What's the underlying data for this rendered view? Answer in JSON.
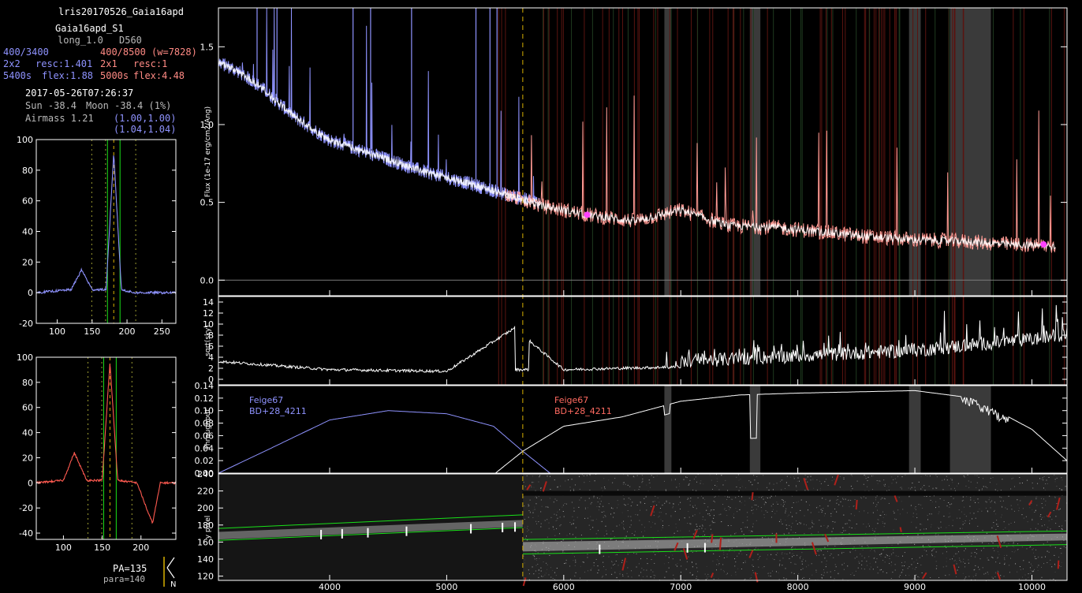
{
  "header": {
    "run_name": "lris20170526_Gaia16apd",
    "object": "Gaia16apd_S1",
    "slit": "long_1.0",
    "dichroic": "D560",
    "blue_grating": "400/3400",
    "red_grating": "400/8500 (w=7828)",
    "blue_binning": "2x2",
    "blue_resc": "resc:1.401",
    "red_binning": "2x1",
    "red_resc": "resc:1",
    "blue_exptime": "5400s",
    "blue_flex": "flex:1.88",
    "red_exptime": "5000s",
    "red_flex": "flex:4.48",
    "datetime": "2017-05-26T07:26:37",
    "sun": "Sun -38.4",
    "moon": "Moon -38.4 (1%)",
    "airmass": "Airmass 1.21",
    "airmass_blue": "(1.00,1.00)",
    "airmass_red": "(1.04,1.04)",
    "pa": "PA=135",
    "para": "para=140",
    "compass_n": "N"
  },
  "colors": {
    "blue": "#8f93ff",
    "red": "#ff5a50",
    "pink": "#ff9a94",
    "green": "#19e019",
    "gold": "#d8b000",
    "mask": "#3a3a3a"
  },
  "chart_data": [
    {
      "id": "flux",
      "type": "line",
      "ylabel": "Flux (1e-17 erg/cm2/Ang)",
      "xlim": [
        3050,
        10300
      ],
      "ylim": [
        -0.1,
        1.75
      ],
      "yticks": [
        "0.0",
        "0.5",
        "1.0",
        "1.5"
      ],
      "xticks": [
        "4000",
        "5000",
        "6000",
        "7000",
        "8000",
        "9000",
        "10000"
      ],
      "dichroic_x": 5650,
      "masked_regions": [
        [
          6860,
          6920
        ],
        [
          7590,
          7680
        ],
        [
          8950,
          9050
        ],
        [
          9300,
          9650
        ]
      ],
      "series": [
        {
          "color": "blue",
          "x": [
            3050,
            3200,
            3400,
            3700,
            4000,
            4400,
            4800,
            5200,
            5600,
            5800
          ],
          "y": [
            1.4,
            1.35,
            1.25,
            1.05,
            0.9,
            0.8,
            0.7,
            0.62,
            0.53,
            0.5
          ]
        },
        {
          "color": "red",
          "x": [
            5500,
            5800,
            6200,
            6600,
            7000,
            7400,
            7800,
            8200,
            8600,
            9000,
            9400,
            9800,
            10200
          ],
          "y": [
            0.55,
            0.48,
            0.42,
            0.38,
            0.45,
            0.35,
            0.34,
            0.31,
            0.28,
            0.26,
            0.25,
            0.23,
            0.22
          ]
        }
      ]
    },
    {
      "id": "sky",
      "type": "line",
      "ylabel": "sqrt(sky)",
      "xlim": [
        3050,
        10300
      ],
      "ylim": [
        -1,
        15
      ],
      "yticks": [
        "0",
        "2",
        "4",
        "6",
        "8",
        "10",
        "12",
        "14"
      ],
      "series": [
        {
          "color": "white",
          "x": [
            3050,
            4000,
            5000,
            5577,
            6000,
            7000,
            8000,
            9000,
            10000,
            10300
          ],
          "y": [
            3,
            1.5,
            1.2,
            9,
            1.5,
            2,
            3,
            4,
            6,
            7
          ]
        }
      ]
    },
    {
      "id": "throughput",
      "type": "line",
      "ylabel": "Throughput",
      "xlim": [
        3050,
        10300
      ],
      "ylim": [
        0,
        0.14
      ],
      "yticks": [
        "0.00",
        "0.02",
        "0.04",
        "0.06",
        "0.08",
        "0.10",
        "0.12",
        "0.14"
      ],
      "annotations": [
        {
          "lines": [
            "Feige67",
            "BD+28_4211"
          ],
          "color": "blue"
        },
        {
          "lines": [
            "Feige67",
            "BD+28_4211"
          ],
          "color": "red"
        }
      ],
      "series": [
        {
          "color": "white",
          "x": [
            3050,
            3500,
            4000,
            4500,
            5000,
            5400,
            5650,
            6000,
            6500,
            7000,
            7500,
            8000,
            8500,
            9000,
            9500,
            10000,
            10300
          ],
          "y": [
            0.0,
            0.04,
            0.085,
            0.1,
            0.095,
            0.075,
            0.035,
            0.075,
            0.09,
            0.115,
            0.125,
            0.128,
            0.13,
            0.132,
            0.12,
            0.07,
            0.02
          ]
        }
      ]
    },
    {
      "id": "trace2d",
      "type": "heatmap",
      "ylabel": "y pixel",
      "xlim": [
        3050,
        10300
      ],
      "ylim": [
        115,
        240
      ],
      "yticks": [
        "120",
        "140",
        "160",
        "180",
        "200",
        "220",
        "240"
      ],
      "xlabel": ""
    },
    {
      "id": "profile_blue",
      "type": "line",
      "xlim": [
        70,
        270
      ],
      "ylim": [
        -20,
        100
      ],
      "xticks": [
        "100",
        "150",
        "200",
        "250"
      ],
      "yticks": [
        "-20",
        "0",
        "20",
        "40",
        "60",
        "80",
        "100"
      ],
      "series": [
        {
          "color": "blue",
          "x": [
            70,
            120,
            135,
            150,
            170,
            181,
            192,
            210,
            270
          ],
          "y": [
            0,
            2,
            15,
            2,
            2,
            91,
            2,
            0,
            0
          ]
        }
      ]
    },
    {
      "id": "profile_red",
      "type": "line",
      "xlim": [
        65,
        245
      ],
      "ylim": [
        -45,
        100
      ],
      "xticks": [
        "100",
        "150",
        "200"
      ],
      "yticks": [
        "-40",
        "-20",
        "0",
        "20",
        "40",
        "60",
        "80",
        "100"
      ],
      "series": [
        {
          "color": "red",
          "x": [
            65,
            100,
            114,
            130,
            150,
            160,
            170,
            195,
            210,
            215,
            225,
            245
          ],
          "y": [
            0,
            2,
            24,
            2,
            2,
            96,
            2,
            0,
            -25,
            -32,
            0,
            0
          ]
        }
      ]
    }
  ]
}
